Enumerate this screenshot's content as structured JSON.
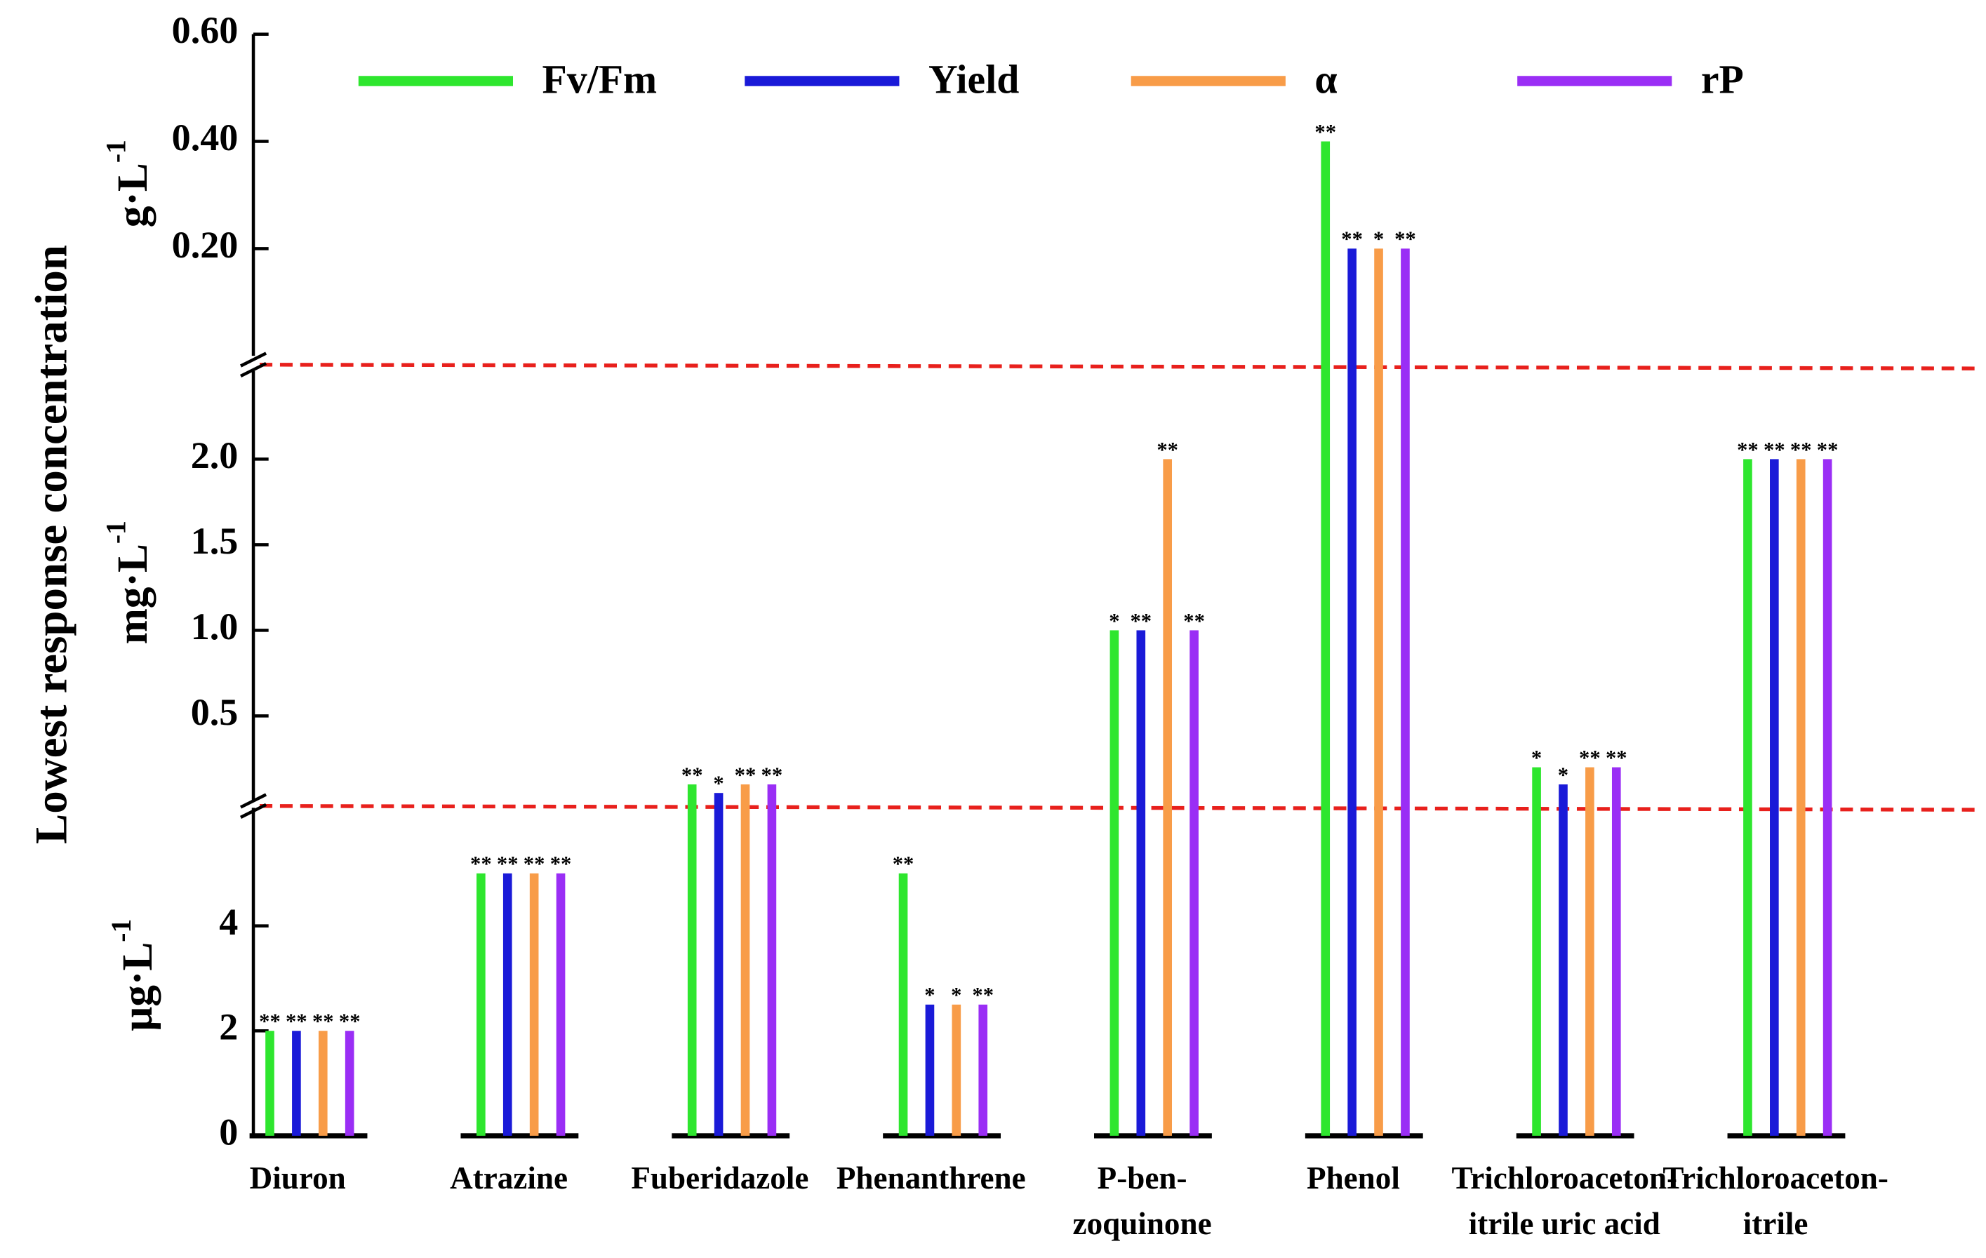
{
  "chart_data": {
    "type": "bar",
    "ylabel": "Lowest response concentration",
    "legend": "top",
    "categories": [
      [
        "Diuron"
      ],
      [
        "Atrazine"
      ],
      [
        "Fuberidazole"
      ],
      [
        "Phenanthrene"
      ],
      [
        "P-ben-",
        "zoquinone"
      ],
      [
        "Phenol"
      ],
      [
        "Trichloroaceton-",
        "itrile uric acid"
      ],
      [
        "Trichloroaceton-",
        "itrile"
      ]
    ],
    "series": [
      {
        "name": "Fv/Fm",
        "color": "#2ee62e",
        "stars": [
          "**",
          "**",
          "**",
          "**",
          "*",
          "**",
          "*",
          "**"
        ]
      },
      {
        "name": "Yield",
        "color": "#1a1ad8",
        "stars": [
          "**",
          "**",
          "*",
          "*",
          "**",
          "**",
          "*",
          "**"
        ]
      },
      {
        "name": "α",
        "color": "#f89c48",
        "stars": [
          "**",
          "**",
          "**",
          "*",
          "**",
          "*",
          "**",
          "**"
        ]
      },
      {
        "name": "rP",
        "color": "#9a2ef5",
        "stars": [
          "**",
          "**",
          "**",
          "**",
          "**",
          "**",
          "**",
          "**"
        ]
      }
    ],
    "panels": [
      {
        "ylabel": "μg·L",
        "ylabel_exp": "-1",
        "ylim": [
          0,
          6.2
        ],
        "yticks": [
          0,
          2,
          4
        ],
        "values": [
          [
            2,
            5,
            null,
            5,
            null,
            null,
            null,
            null
          ],
          [
            2,
            5,
            null,
            2.5,
            null,
            null,
            null,
            null
          ],
          [
            2,
            5,
            null,
            2.5,
            null,
            null,
            null,
            null
          ],
          [
            2,
            5,
            null,
            2.5,
            null,
            null,
            null,
            null
          ]
        ]
      },
      {
        "ylabel": "mg·L",
        "ylabel_exp": "-1",
        "ylim": [
          0,
          2.5
        ],
        "yticks": [
          0.5,
          {
            "value": 1,
            "label": "1.0"
          },
          1.5,
          {
            "value": 2,
            "label": "2.0"
          }
        ],
        "values": [
          [
            null,
            null,
            0.1,
            null,
            1,
            null,
            0.2,
            2
          ],
          [
            null,
            null,
            0.05,
            null,
            1,
            null,
            0.1,
            2
          ],
          [
            null,
            null,
            0.1,
            null,
            2,
            null,
            0.2,
            2
          ],
          [
            null,
            null,
            0.1,
            null,
            1,
            null,
            0.2,
            2
          ]
        ]
      },
      {
        "ylabel": "g·L",
        "ylabel_exp": "-1",
        "ylim": [
          0,
          0.6
        ],
        "yticks": [
          {
            "value": 0.2,
            "label": "0.20"
          },
          {
            "value": 0.4,
            "label": "0.40"
          },
          {
            "value": 0.6,
            "label": "0.60"
          }
        ],
        "values": [
          [
            null,
            null,
            null,
            null,
            null,
            0.4,
            null,
            null
          ],
          [
            null,
            null,
            null,
            null,
            null,
            0.2,
            null,
            null
          ],
          [
            null,
            null,
            null,
            null,
            null,
            0.2,
            null,
            null
          ],
          [
            null,
            null,
            null,
            null,
            null,
            0.2,
            null,
            null
          ]
        ]
      }
    ]
  }
}
